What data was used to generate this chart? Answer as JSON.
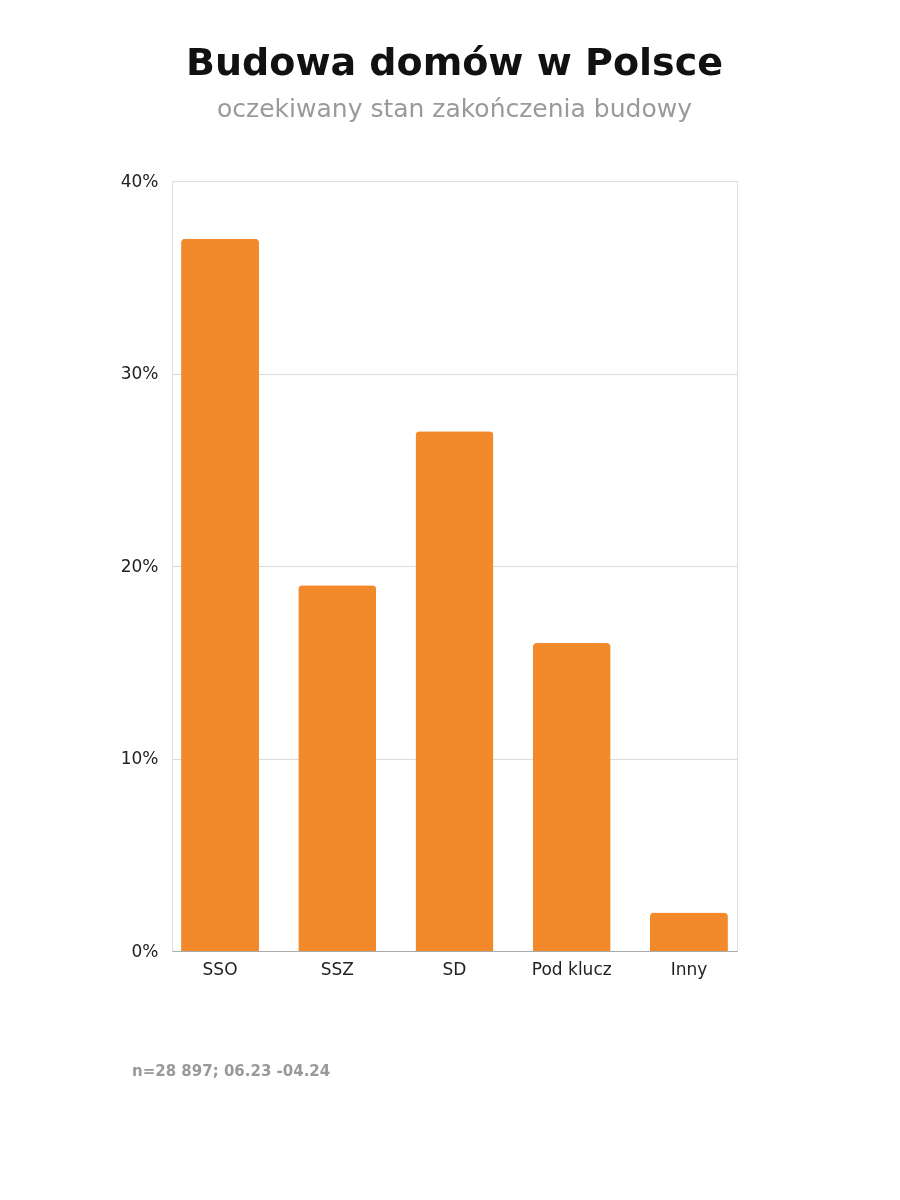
{
  "chart_data": {
    "type": "bar",
    "title": "Budowa domów w Polsce",
    "subtitle": "oczekiwany stan zakończenia budowy",
    "categories": [
      "SSO",
      "SSZ",
      "SD",
      "Pod klucz",
      "Inny"
    ],
    "values": [
      37,
      19,
      27,
      16,
      2
    ],
    "color": "#f28a2c",
    "ylim": [
      0,
      40
    ],
    "yticks": [
      {
        "value": 0,
        "label": "0%"
      },
      {
        "value": 10,
        "label": "10%"
      },
      {
        "value": 20,
        "label": "20%"
      },
      {
        "value": 30,
        "label": "30%"
      },
      {
        "value": 40,
        "label": "40%"
      }
    ],
    "grid": "y",
    "annotations": [
      "n=28 897; 06.23 -04.24"
    ]
  }
}
